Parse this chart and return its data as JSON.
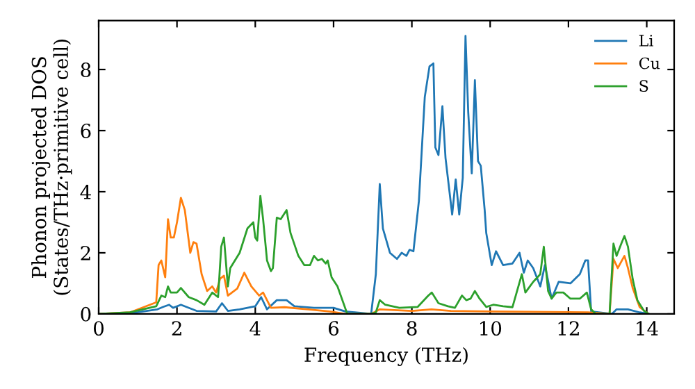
{
  "chart_data": {
    "type": "line",
    "xlabel": "Frequency (THz)",
    "ylabel": "Phonon projected DOS\n(States/THz·primitive cell)",
    "xlim": [
      0,
      14.7
    ],
    "ylim": [
      0,
      9.6
    ],
    "xticks": [
      0,
      2,
      4,
      6,
      8,
      10,
      12,
      14
    ],
    "yticks": [
      0,
      2,
      4,
      6,
      8
    ],
    "grid": false,
    "legend": "top right",
    "marker": "none",
    "line_style": "solid",
    "series": [
      {
        "name": "Li",
        "color": "#1f77b4",
        "x": [
          0,
          0.8,
          1.5,
          1.65,
          1.8,
          1.9,
          2.1,
          2.5,
          3.0,
          3.15,
          3.3,
          3.6,
          4.0,
          4.15,
          4.3,
          4.55,
          4.8,
          5.0,
          5.5,
          6.0,
          6.3,
          6.96,
          7.08,
          7.18,
          7.26,
          7.44,
          7.62,
          7.74,
          7.86,
          7.94,
          8.04,
          8.18,
          8.33,
          8.45,
          8.55,
          8.6,
          8.68,
          8.78,
          8.86,
          9.03,
          9.12,
          9.21,
          9.3,
          9.37,
          9.44,
          9.53,
          9.61,
          9.69,
          9.76,
          9.86,
          9.9,
          10.04,
          10.15,
          10.33,
          10.57,
          10.75,
          10.86,
          10.96,
          11.1,
          11.28,
          11.4,
          11.57,
          11.75,
          12.05,
          12.29,
          12.43,
          12.5,
          12.58,
          13.11,
          13.23,
          13.52,
          13.82,
          14.05
        ],
        "values": [
          0,
          0.02,
          0.15,
          0.23,
          0.3,
          0.2,
          0.3,
          0.1,
          0.08,
          0.35,
          0.1,
          0.15,
          0.25,
          0.55,
          0.15,
          0.45,
          0.45,
          0.25,
          0.2,
          0.2,
          0.08,
          0,
          1.3,
          4.25,
          2.8,
          2.0,
          1.8,
          2.0,
          1.9,
          2.1,
          2.05,
          3.7,
          7.1,
          8.1,
          8.2,
          5.45,
          5.2,
          6.8,
          5.1,
          3.25,
          4.4,
          3.25,
          4.45,
          9.1,
          6.6,
          4.6,
          7.65,
          5.0,
          4.85,
          3.4,
          2.65,
          1.6,
          2.05,
          1.6,
          1.65,
          2.0,
          1.35,
          1.75,
          1.5,
          0.9,
          1.6,
          0.5,
          1.05,
          1.0,
          1.3,
          1.75,
          1.75,
          0.08,
          0,
          0.15,
          0.15,
          0.05,
          0
        ]
      },
      {
        "name": "Cu",
        "color": "#ff7f0e",
        "x": [
          0,
          0.8,
          1.47,
          1.53,
          1.6,
          1.7,
          1.77,
          1.84,
          1.92,
          2.0,
          2.1,
          2.2,
          2.34,
          2.42,
          2.5,
          2.63,
          2.77,
          2.9,
          3.0,
          3.1,
          3.2,
          3.3,
          3.54,
          3.72,
          3.9,
          4.1,
          4.2,
          4.4,
          4.75,
          5.35,
          5.9,
          6.3,
          6.96,
          7.18,
          8.0,
          8.5,
          9.0,
          10.0,
          12.5,
          13.05,
          13.15,
          13.26,
          13.43,
          13.52,
          13.64,
          13.82,
          14.05
        ],
        "values": [
          0,
          0.05,
          0.38,
          1.6,
          1.75,
          1.2,
          3.1,
          2.5,
          2.5,
          3.0,
          3.8,
          3.4,
          2.0,
          2.35,
          2.3,
          1.3,
          0.75,
          0.9,
          0.7,
          1.15,
          1.25,
          0.6,
          0.83,
          1.35,
          0.9,
          0.6,
          0.7,
          0.2,
          0.22,
          0.15,
          0.08,
          0,
          0,
          0.15,
          0.1,
          0.15,
          0.1,
          0.08,
          0.05,
          0,
          1.8,
          1.5,
          1.9,
          1.5,
          0.85,
          0.22,
          0
        ]
      },
      {
        "name": "S",
        "color": "#2ca02c",
        "x": [
          0,
          0.8,
          1.47,
          1.6,
          1.7,
          1.77,
          1.84,
          2.0,
          2.1,
          2.3,
          2.5,
          2.7,
          2.9,
          3.05,
          3.13,
          3.2,
          3.3,
          3.36,
          3.6,
          3.8,
          3.95,
          4.0,
          4.05,
          4.13,
          4.2,
          4.3,
          4.4,
          4.45,
          4.55,
          4.65,
          4.8,
          4.9,
          5.1,
          5.25,
          5.4,
          5.5,
          5.6,
          5.7,
          5.8,
          5.85,
          5.95,
          6.1,
          6.35,
          6.96,
          7.08,
          7.18,
          7.32,
          7.68,
          8.15,
          8.42,
          8.51,
          8.68,
          8.92,
          9.1,
          9.28,
          9.39,
          9.5,
          9.61,
          9.73,
          9.9,
          10.08,
          10.33,
          10.57,
          10.81,
          10.9,
          11.1,
          11.28,
          11.37,
          11.48,
          11.57,
          11.69,
          11.87,
          12.05,
          12.29,
          12.47,
          12.58,
          12.7,
          13.05,
          13.15,
          13.23,
          13.35,
          13.43,
          13.52,
          13.64,
          13.76,
          13.93,
          14.05
        ],
        "values": [
          0,
          0.05,
          0.25,
          0.6,
          0.55,
          0.9,
          0.7,
          0.7,
          0.85,
          0.55,
          0.45,
          0.3,
          0.7,
          0.55,
          2.2,
          2.5,
          0.9,
          1.5,
          2.0,
          2.8,
          3.0,
          2.5,
          2.4,
          3.86,
          3.1,
          1.75,
          1.4,
          1.5,
          3.15,
          3.1,
          3.4,
          2.65,
          1.9,
          1.6,
          1.6,
          1.9,
          1.75,
          1.8,
          1.65,
          1.75,
          1.2,
          0.9,
          0,
          0,
          0.05,
          0.45,
          0.3,
          0.2,
          0.23,
          0.6,
          0.7,
          0.35,
          0.25,
          0.2,
          0.6,
          0.45,
          0.5,
          0.75,
          0.5,
          0.23,
          0.3,
          0.25,
          0.22,
          1.3,
          0.7,
          1.05,
          1.3,
          2.2,
          0.75,
          0.5,
          0.7,
          0.7,
          0.5,
          0.5,
          0.7,
          0.15,
          0,
          0,
          2.3,
          1.9,
          2.3,
          2.55,
          2.2,
          1.15,
          0.45,
          0.1,
          0
        ]
      }
    ]
  }
}
